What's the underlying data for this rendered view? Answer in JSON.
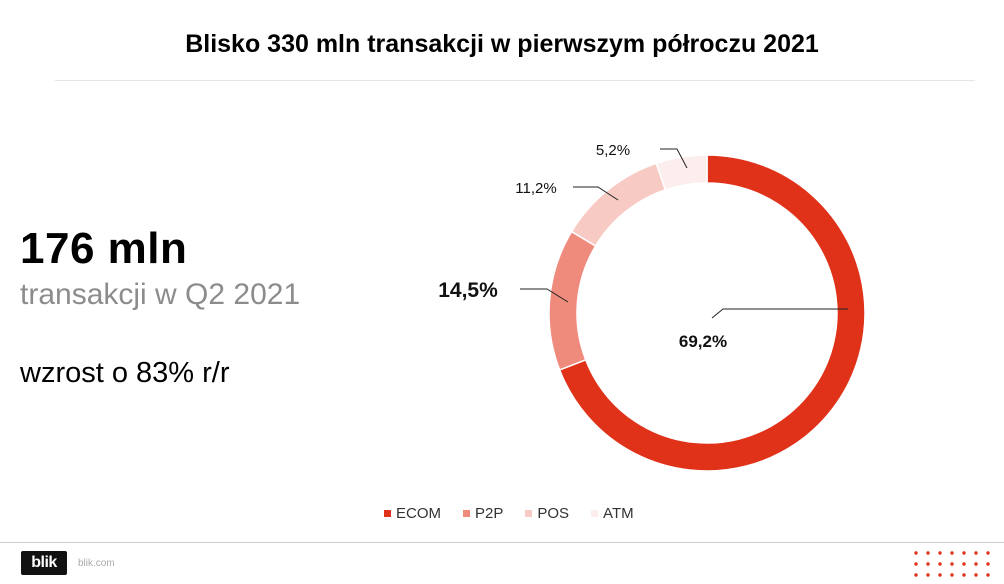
{
  "title": "Blisko 330 mln transakcji w pierwszym półroczu 2021",
  "headline": {
    "value": "176 mln",
    "subtitle": "transakcji w Q2 2021",
    "growth": "wzrost o 83% r/r"
  },
  "chart_data": {
    "type": "pie",
    "variant": "donut",
    "categories": [
      "ECOM",
      "P2P",
      "POS",
      "ATM"
    ],
    "values": [
      69.2,
      14.5,
      11.2,
      5.2
    ],
    "labels": [
      "69,2%",
      "14,5%",
      "11,2%",
      "5,2%"
    ],
    "colors": [
      "#e03119",
      "#ef8b7d",
      "#f7cbc4",
      "#fbeeec"
    ],
    "legend_position": "bottom"
  },
  "footer": {
    "logo_text": "blik",
    "site": "blik.com"
  },
  "colors": {
    "dots": "#e03119"
  }
}
